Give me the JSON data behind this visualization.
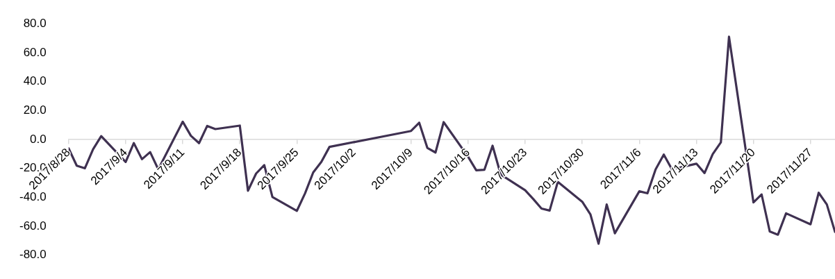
{
  "chart_data": {
    "type": "line",
    "x": [
      "2017-08-28",
      "2017-08-29",
      "2017-08-30",
      "2017-08-31",
      "2017-09-01",
      "2017-09-04",
      "2017-09-05",
      "2017-09-06",
      "2017-09-07",
      "2017-09-08",
      "2017-09-11",
      "2017-09-12",
      "2017-09-13",
      "2017-09-14",
      "2017-09-15",
      "2017-09-18",
      "2017-09-19",
      "2017-09-20",
      "2017-09-21",
      "2017-09-22",
      "2017-09-25",
      "2017-09-26",
      "2017-09-27",
      "2017-09-28",
      "2017-09-29",
      "2017-10-09",
      "2017-10-10",
      "2017-10-11",
      "2017-10-12",
      "2017-10-13",
      "2017-10-16",
      "2017-10-17",
      "2017-10-18",
      "2017-10-19",
      "2017-10-20",
      "2017-10-23",
      "2017-10-24",
      "2017-10-25",
      "2017-10-26",
      "2017-10-27",
      "2017-10-30",
      "2017-10-31",
      "2017-11-01",
      "2017-11-02",
      "2017-11-03",
      "2017-11-06",
      "2017-11-07",
      "2017-11-08",
      "2017-11-09",
      "2017-11-10",
      "2017-11-13",
      "2017-11-14",
      "2017-11-15",
      "2017-11-16",
      "2017-11-17",
      "2017-11-20",
      "2017-11-21",
      "2017-11-22",
      "2017-11-23",
      "2017-11-24",
      "2017-11-27",
      "2017-11-28",
      "2017-11-29",
      "2017-11-30"
    ],
    "series": [
      {
        "color": "#3f3151",
        "values": [
          -6.1,
          -18.1,
          -19.9,
          -6.8,
          2.3,
          -15.5,
          -2.5,
          -13.6,
          -8.7,
          -20.6,
          12.3,
          2.6,
          -2.5,
          9.4,
          7.2,
          9.6,
          -35.4,
          -23.5,
          -17.7,
          -39.7,
          -49.3,
          -37.2,
          -22.8,
          -15.5,
          -5.1,
          5.9,
          11.6,
          -5.8,
          -9.0,
          12.0,
          -11.9,
          -21.3,
          -20.9,
          -4.3,
          -24.2,
          -35.1,
          -41.2,
          -47.7,
          -49.1,
          -29.3,
          -43.0,
          -51.7,
          -72.0,
          -44.9,
          -64.8,
          -35.8,
          -37.2,
          -20.6,
          -10.4,
          -20.6,
          -16.7,
          -23.2,
          -10.1,
          -2.0,
          71.0,
          -43.5,
          -38.0,
          -63.6,
          -65.8,
          -51.0,
          -58.6,
          -36.8,
          -44.9,
          -63.8
        ]
      }
    ],
    "xlim": [
      "2017-08-28",
      "2017-11-30"
    ],
    "xticks": [
      {
        "value": "2017-08-28",
        "label": "2017/8/28"
      },
      {
        "value": "2017-09-04",
        "label": "2017/9/4"
      },
      {
        "value": "2017-09-11",
        "label": "2017/9/11"
      },
      {
        "value": "2017-09-18",
        "label": "2017/9/18"
      },
      {
        "value": "2017-09-25",
        "label": "2017/9/25"
      },
      {
        "value": "2017-10-02",
        "label": "2017/10/2"
      },
      {
        "value": "2017-10-09",
        "label": "2017/10/9"
      },
      {
        "value": "2017-10-16",
        "label": "2017/10/16"
      },
      {
        "value": "2017-10-23",
        "label": "2017/10/23"
      },
      {
        "value": "2017-10-30",
        "label": "2017/10/30"
      },
      {
        "value": "2017-11-06",
        "label": "2017/11/6"
      },
      {
        "value": "2017-11-13",
        "label": "2017/11/13"
      },
      {
        "value": "2017-11-20",
        "label": "2017/11/20"
      },
      {
        "value": "2017-11-27",
        "label": "2017/11/27"
      }
    ],
    "ylim": [
      -80,
      80
    ],
    "yticks": [
      {
        "value": -80,
        "label": "-80.0"
      },
      {
        "value": -60,
        "label": "-60.0"
      },
      {
        "value": -40,
        "label": "-40.0"
      },
      {
        "value": -20,
        "label": "-20.0"
      },
      {
        "value": 0,
        "label": "0.0"
      },
      {
        "value": 20,
        "label": "20.0"
      },
      {
        "value": 40,
        "label": "40.0"
      },
      {
        "value": 60,
        "label": "60.0"
      },
      {
        "value": 80,
        "label": "80.0"
      }
    ],
    "marker": "none",
    "line_style": "solid"
  }
}
